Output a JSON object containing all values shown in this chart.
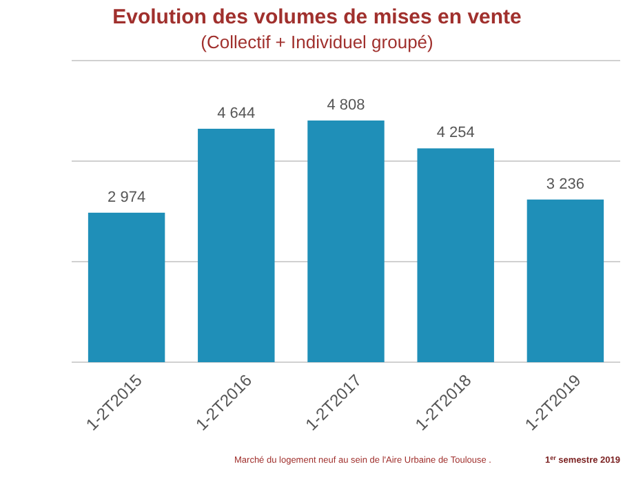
{
  "chart_data": {
    "type": "bar",
    "title": "Evolution des volumes de mises en vente",
    "subtitle": "(Collectif + Individuel groupé)",
    "categories": [
      "1-2T2015",
      "1-2T2016",
      "1-2T2017",
      "1-2T2018",
      "1-2T2019"
    ],
    "values": [
      2974,
      4644,
      4808,
      4254,
      3236
    ],
    "color": "#1f8fb8",
    "value_labels": [
      "2 974",
      "4 644",
      "4 808",
      "4 254",
      "3 236"
    ],
    "ylim": [
      0,
      6000
    ],
    "yticks": [
      {
        "value": 0,
        "label": null
      },
      {
        "value": 2000,
        "label": null
      },
      {
        "value": 4000,
        "label": null
      },
      {
        "value": 6000,
        "label": null
      }
    ],
    "tick_labels": "x",
    "grid": "y",
    "annotations": [
      "Marché du logement neuf au sein de l'Aire Urbaine de Toulouse .",
      "1$^{er}$ semestre 2019"
    ]
  }
}
